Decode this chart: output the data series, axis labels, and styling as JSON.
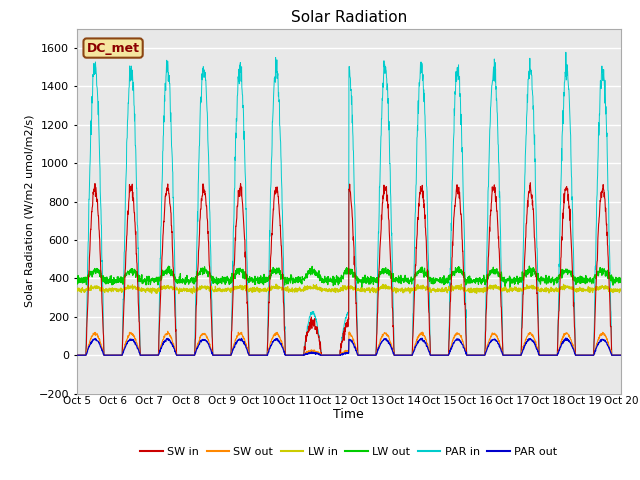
{
  "title": "Solar Radiation",
  "ylabel": "Solar Radiation (W/m2 umol/m2/s)",
  "xlabel": "Time",
  "ylim": [
    -200,
    1700
  ],
  "yticks": [
    -200,
    0,
    200,
    400,
    600,
    800,
    1000,
    1200,
    1400,
    1600
  ],
  "plot_bg": "#e8e8e8",
  "legend_label": "DC_met",
  "legend_bg": "#f5e6a0",
  "legend_border": "#8b4513",
  "legend_text": "#8b0000",
  "series_colors": {
    "SW_in": "#cc0000",
    "SW_out": "#ff8800",
    "LW_in": "#cccc00",
    "LW_out": "#00cc00",
    "PAR_in": "#00cccc",
    "PAR_out": "#0000cc"
  },
  "n_days": 15,
  "points_per_day": 144,
  "start_day": 5
}
